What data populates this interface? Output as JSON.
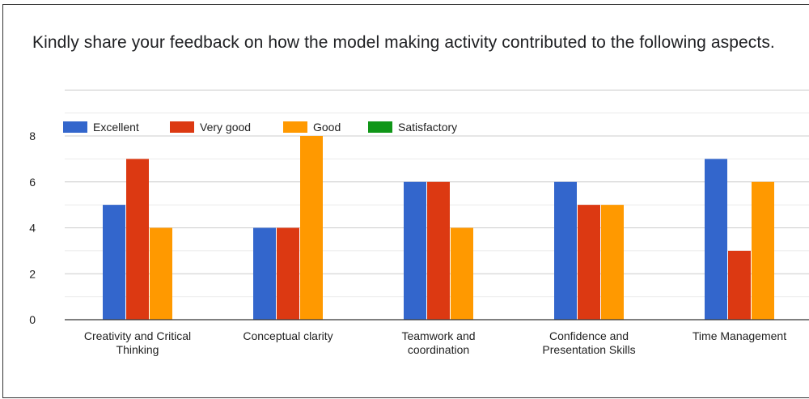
{
  "question": {
    "title": "Kindly share your feedback on how the model making activity contributed to the following aspects."
  },
  "colors": {
    "excellent": "#3366cc",
    "very_good": "#dc3912",
    "good": "#ff9900",
    "satisfactory": "#109618",
    "grid": "#d9d9d9",
    "axis": "#333333"
  },
  "chart_data": {
    "type": "bar",
    "categories": [
      [
        "Creativity and Critical",
        "Thinking"
      ],
      [
        "Conceptual clarity"
      ],
      [
        "Teamwork and",
        "coordination"
      ],
      [
        "Confidence and",
        "Presentation Skills"
      ],
      [
        "Time Management"
      ]
    ],
    "series": [
      {
        "name": "Excellent",
        "color": "#3366cc",
        "values": [
          5,
          4,
          6,
          6,
          7
        ]
      },
      {
        "name": "Very good",
        "color": "#dc3912",
        "values": [
          7,
          4,
          6,
          5,
          3
        ]
      },
      {
        "name": "Good",
        "color": "#ff9900",
        "values": [
          4,
          8,
          4,
          5,
          6
        ]
      },
      {
        "name": "Satisfactory",
        "color": "#109618",
        "values": [
          0,
          0,
          0,
          0,
          0
        ]
      }
    ],
    "yticks": [
      0,
      2,
      4,
      6,
      8
    ],
    "ylim": [
      0,
      8
    ],
    "grid": true,
    "legend_position": "top-left",
    "title": "",
    "xlabel": "",
    "ylabel": ""
  }
}
